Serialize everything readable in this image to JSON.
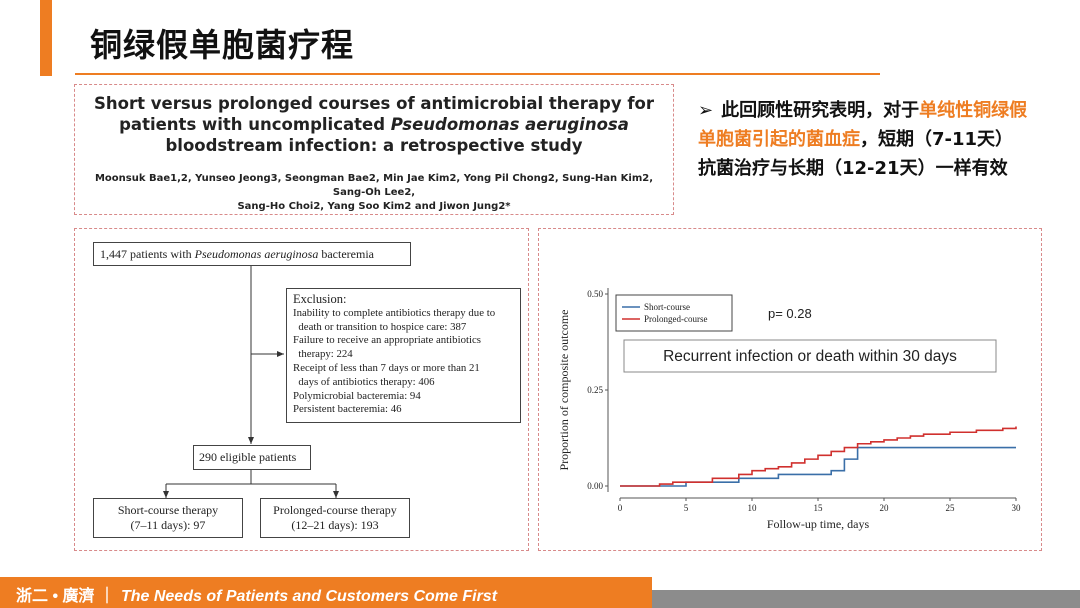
{
  "title": "铜绿假单胞菌疗程",
  "paper": {
    "title_part1": "Short versus prolonged courses of antimicrobial therapy for patients with uncomplicated ",
    "title_italic": "Pseudomonas aeruginosa",
    "title_part2": " bloodstream infection: a retrospective study",
    "authors_line1": "Moonsuk Bae1,2, Yunseo Jeong3, Seongman Bae2, Min Jae Kim2, Yong Pil Chong2, Sung-Han Kim2, Sang-Oh Lee2,",
    "authors_line2": "Sang-Ho Choi2, Yang Soo Kim2 and Jiwon Jung2*"
  },
  "summary": {
    "bullet": "➢",
    "text1": "此回顾性研究表明，对于",
    "highlight": "单纯性铜绿假单胞菌引起的菌血症",
    "text2": "，短期（7-11天）抗菌治疗与长期（12-21天）一样有效"
  },
  "flow": {
    "top_prefix": "1,447 patients with ",
    "top_italic": "Pseudomonas aeruginosa",
    "top_suffix": " bacteremia",
    "exclusion_title": "Exclusion:",
    "exclusion_items": [
      "Inability to complete antibiotics therapy due to",
      "  death or transition to hospice care: 387",
      "Failure to receive an appropriate antibiotics",
      "  therapy: 224",
      "Receipt of less than 7 days or more than 21",
      "  days of antibiotics therapy: 406",
      "Polymicrobial bacteremia: 94",
      "Persistent bacteremia: 46"
    ],
    "eligible": "290 eligible patients",
    "short_line1": "Short-course therapy",
    "short_line2": "(7–11 days): 97",
    "long_line1": "Prolonged-course therapy",
    "long_line2": "(12–21 days): 193"
  },
  "chart_data": {
    "type": "line",
    "title": "Recurrent infection or death within 30 days",
    "annotation": "p= 0.28",
    "xlabel": "Follow-up time, days",
    "ylabel": "Proportion of composite outcome",
    "xlim": [
      0,
      30
    ],
    "ylim": [
      0,
      0.5
    ],
    "xticks": [
      0,
      5,
      10,
      15,
      20,
      25,
      30
    ],
    "yticks": [
      0.0,
      0.25,
      0.5
    ],
    "ytick_labels": [
      "0.00",
      "0.25",
      "0.50"
    ],
    "legend_position": "top-left",
    "series": [
      {
        "name": "Short-course",
        "color": "#3a6fa8",
        "x": [
          0,
          3,
          5,
          7,
          9,
          11,
          12,
          13,
          14,
          16,
          17,
          18,
          20,
          22,
          23,
          25,
          27,
          30
        ],
        "y": [
          0,
          0,
          0.01,
          0.01,
          0.02,
          0.02,
          0.03,
          0.03,
          0.03,
          0.04,
          0.07,
          0.1,
          0.1,
          0.1,
          0.1,
          0.1,
          0.1,
          0.1
        ]
      },
      {
        "name": "Prolonged-course",
        "color": "#d0302e",
        "x": [
          0,
          3,
          4,
          6,
          7,
          8,
          9,
          10,
          11,
          12,
          13,
          14,
          15,
          16,
          17,
          18,
          19,
          20,
          21,
          22,
          23,
          24,
          25,
          26,
          27,
          28,
          29,
          30
        ],
        "y": [
          0,
          0.005,
          0.01,
          0.01,
          0.02,
          0.02,
          0.03,
          0.04,
          0.045,
          0.05,
          0.06,
          0.07,
          0.08,
          0.09,
          0.1,
          0.11,
          0.115,
          0.12,
          0.125,
          0.13,
          0.135,
          0.135,
          0.14,
          0.14,
          0.145,
          0.145,
          0.15,
          0.155
        ]
      }
    ]
  },
  "footer": {
    "company": "浙二 • 廣濟 ｜",
    "slogan": "The Needs of Patients and Customers Come First"
  },
  "colors": {
    "accent": "#ee7d22",
    "footer_gray": "#8c8c8c"
  }
}
